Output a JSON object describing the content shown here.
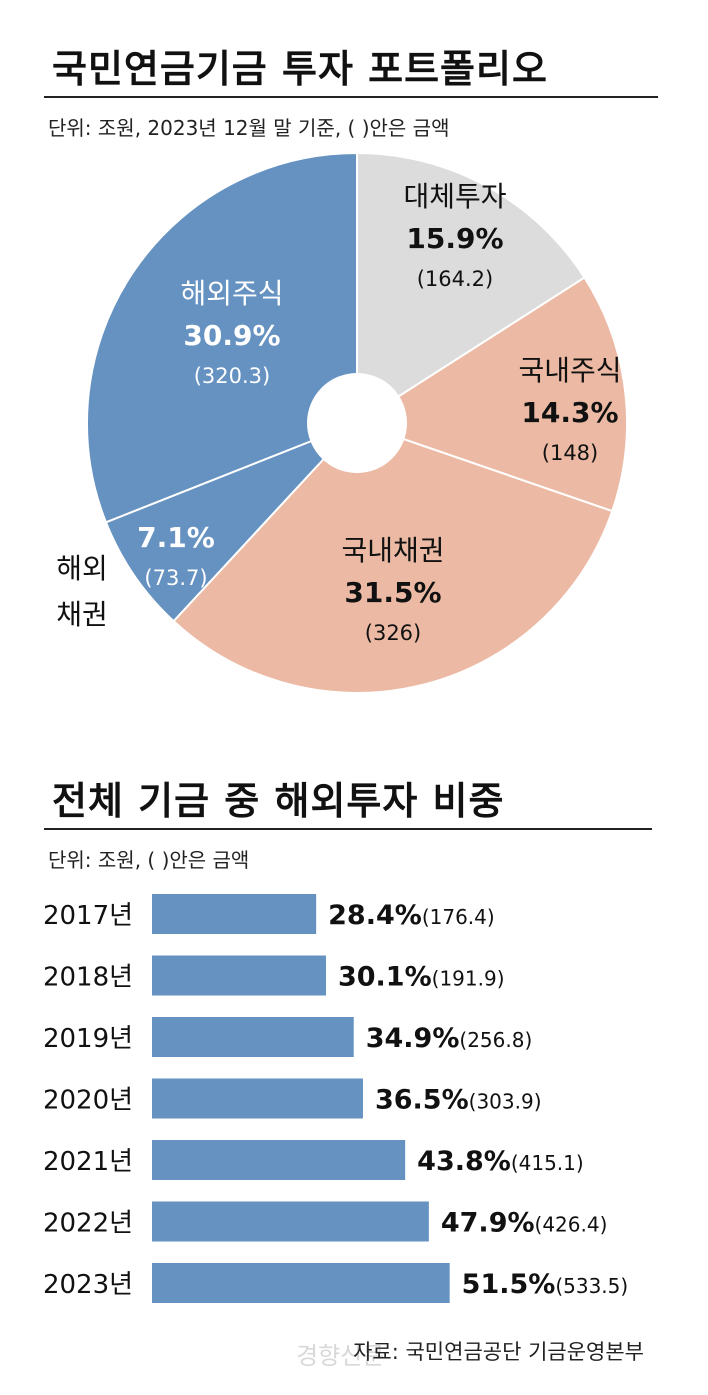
{
  "pie_section": {
    "title": "국민연금기금 투자 포트폴리오",
    "unit_note": "단위: 조원,  2023년 12월 말 기준, ( )안은 금액"
  },
  "bar_section": {
    "title": "전체 기금 중 해외투자 비중",
    "unit_note": "단위: 조원, ( )안은 금액"
  },
  "source": "자료: 국민연금공단 기금운영본부",
  "watermark": "경향신문",
  "colors": {
    "overseas_blue": "#6592c1",
    "domestic_salmon": "#ecbaa4",
    "alternative_gray": "#dcdcdc"
  },
  "chart_data": [
    {
      "type": "pie",
      "title": "국민연금기금 투자 포트폴리오",
      "unit": "조원",
      "slices": [
        {
          "label": "대체투자",
          "percent": 15.9,
          "amount": "164.2",
          "color": "#dcdcdc"
        },
        {
          "label": "국내주식",
          "percent": 14.3,
          "amount": "148",
          "color": "#ecbaa4"
        },
        {
          "label": "국내채권",
          "percent": 31.5,
          "amount": "326",
          "color": "#ecbaa4"
        },
        {
          "label": "해외채권",
          "percent": 7.1,
          "amount": "73.7",
          "color": "#6592c1"
        },
        {
          "label": "해외주식",
          "percent": 30.9,
          "amount": "320.3",
          "color": "#6592c1"
        }
      ]
    },
    {
      "type": "bar",
      "title": "전체 기금 중 해외투자 비중",
      "unit": "조원",
      "categories": [
        "2017년",
        "2018년",
        "2019년",
        "2020년",
        "2021년",
        "2022년",
        "2023년"
      ],
      "values": [
        28.4,
        30.1,
        34.9,
        36.5,
        43.8,
        47.9,
        51.5
      ],
      "amounts": [
        "176.4",
        "191.9",
        "256.8",
        "303.9",
        "415.1",
        "426.4",
        "533.5"
      ],
      "color": "#6592c1"
    }
  ]
}
